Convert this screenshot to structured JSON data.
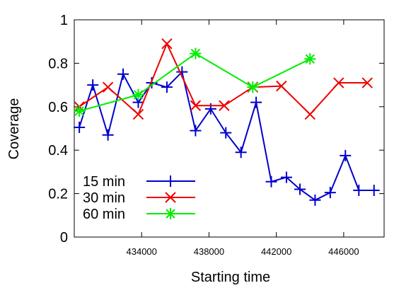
{
  "chart_data": {
    "type": "line",
    "xlabel": "Starting time",
    "ylabel": "Coverage",
    "xlim": [
      430000,
      448400
    ],
    "ylim": [
      0,
      1
    ],
    "x_ticks": [
      434000,
      438000,
      442000,
      446000
    ],
    "y_ticks": [
      0,
      0.2,
      0.4,
      0.6,
      0.8,
      1
    ],
    "y_tick_labels": [
      "0",
      "0.2",
      "0.4",
      "0.6",
      "0.8",
      "1"
    ],
    "x_tick_labels": [
      "434000",
      "438000",
      "442000",
      "446000"
    ],
    "grid": false,
    "legend_position": "bottom-left",
    "series": [
      {
        "name": "15 min",
        "color": "#0000cc",
        "marker": "plus",
        "x": [
          430300,
          431100,
          432000,
          432900,
          433800,
          434600,
          435500,
          436400,
          437200,
          438100,
          439000,
          439900,
          440800,
          441700,
          442600,
          443400,
          444300,
          445200,
          446100,
          446900,
          447800
        ],
        "y": [
          0.505,
          0.7,
          0.47,
          0.75,
          0.62,
          0.71,
          0.69,
          0.76,
          0.49,
          0.59,
          0.48,
          0.39,
          0.62,
          0.255,
          0.275,
          0.22,
          0.17,
          0.205,
          0.375,
          0.215,
          0.215
        ]
      },
      {
        "name": "30 min",
        "color": "#ee0000",
        "marker": "x",
        "x": [
          430300,
          432000,
          433800,
          435500,
          437200,
          438900,
          440600,
          442300,
          444000,
          445700,
          447400
        ],
        "y": [
          0.6,
          0.69,
          0.565,
          0.89,
          0.605,
          0.605,
          0.69,
          0.695,
          0.565,
          0.71,
          0.71
        ]
      },
      {
        "name": "60 min",
        "color": "#00ee00",
        "marker": "star",
        "x": [
          430300,
          433800,
          437200,
          440600,
          444000
        ],
        "y": [
          0.58,
          0.655,
          0.845,
          0.69,
          0.82
        ]
      }
    ]
  }
}
